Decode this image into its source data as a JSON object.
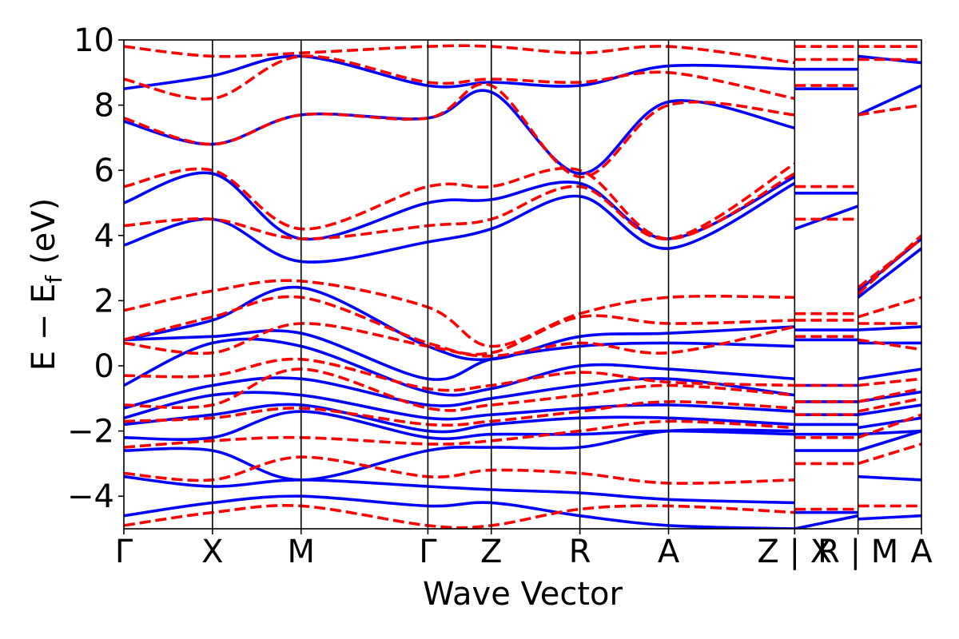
{
  "chart_data": {
    "type": "line",
    "title": "",
    "xlabel": "Wave Vector",
    "ylabel_main": "E − E",
    "ylabel_sub": "f",
    "ylabel_unit": "(eV)",
    "ylim": [
      -5,
      10
    ],
    "yticks": [
      -4,
      -2,
      0,
      2,
      4,
      6,
      8,
      10
    ],
    "ytick_labels": [
      "−4",
      "−2",
      "0",
      "2",
      "4",
      "6",
      "8",
      "10"
    ],
    "xlim": [
      0,
      12.25
    ],
    "kpoint_positions": [
      0,
      1.37,
      2.74,
      4.7,
      5.68,
      7.05,
      8.42,
      10.37,
      10.37,
      11.35,
      11.35,
      12.33
    ],
    "kpoint_labels": [
      {
        "x": 0,
        "text": "Γ"
      },
      {
        "x": 1.37,
        "text": "X"
      },
      {
        "x": 2.74,
        "text": "M"
      },
      {
        "x": 4.7,
        "text": "Γ"
      },
      {
        "x": 5.68,
        "text": "Z"
      },
      {
        "x": 7.05,
        "text": "R"
      },
      {
        "x": 8.42,
        "text": "A"
      },
      {
        "x": 10.37,
        "text": "Z | X"
      },
      {
        "x": 11.35,
        "text": "R | M"
      },
      {
        "x": 12.33,
        "text": "A"
      }
    ],
    "colors": {
      "series_a": "#0000ff",
      "series_b": "#ff0000"
    },
    "series": [
      {
        "name": "blue-solid",
        "style": "solid",
        "color": "#0000ff",
        "bands": [
          [
            -4.6,
            -4.2,
            -4.0,
            -4.3,
            -4.2,
            -4.6,
            -4.9,
            -5.0,
            -5.0,
            -4.6,
            -4.7,
            -4.6
          ],
          [
            -3.4,
            -3.7,
            -3.5,
            -3.7,
            -3.8,
            -3.9,
            -4.1,
            -4.2,
            -4.5,
            -4.5,
            -3.4,
            -3.5
          ],
          [
            -2.6,
            -2.6,
            -3.5,
            -2.6,
            -2.5,
            -2.5,
            -2.0,
            -2.0,
            -2.6,
            -2.6,
            -2.6,
            -2.0
          ],
          [
            -2.2,
            -2.2,
            -1.4,
            -2.2,
            -2.1,
            -2.1,
            -2.0,
            -2.1,
            -2.1,
            -2.1,
            -2.1,
            -2.0
          ],
          [
            -1.8,
            -1.5,
            -1.2,
            -2.0,
            -1.8,
            -1.6,
            -1.6,
            -1.8,
            -1.8,
            -1.8,
            -1.9,
            -1.6
          ],
          [
            -1.6,
            -0.9,
            -0.9,
            -1.6,
            -1.5,
            -1.3,
            -1.2,
            -1.4,
            -1.5,
            -1.5,
            -1.5,
            -1.2
          ],
          [
            -1.3,
            -0.6,
            -0.4,
            -1.2,
            -1.0,
            -0.6,
            -0.4,
            -0.9,
            -1.1,
            -1.1,
            -1.1,
            -0.8
          ],
          [
            -0.6,
            0.7,
            0.6,
            -0.8,
            -0.7,
            0.0,
            -0.1,
            -0.4,
            -0.6,
            -0.6,
            -0.4,
            -0.1
          ],
          [
            0.8,
            0.9,
            1.0,
            -0.4,
            0.2,
            0.6,
            0.7,
            0.6,
            0.8,
            0.8,
            0.7,
            0.7
          ],
          [
            0.8,
            1.4,
            2.4,
            0.6,
            0.2,
            0.9,
            1.0,
            1.2,
            1.1,
            1.1,
            1.1,
            1.2
          ],
          [
            3.7,
            4.5,
            3.2,
            3.8,
            4.2,
            5.2,
            3.6,
            5.6,
            4.2,
            4.9,
            2.1,
            3.6
          ],
          [
            5.0,
            5.9,
            3.9,
            5.0,
            5.1,
            5.6,
            3.9,
            5.8,
            5.3,
            5.3,
            2.3,
            3.9
          ],
          [
            7.5,
            6.8,
            7.7,
            7.6,
            8.4,
            5.9,
            8.1,
            7.3,
            8.5,
            8.5,
            7.7,
            8.6
          ],
          [
            8.5,
            8.9,
            9.5,
            8.6,
            8.7,
            8.6,
            9.2,
            9.1,
            9.1,
            9.1,
            9.5,
            9.3
          ]
        ]
      },
      {
        "name": "red-dashed",
        "style": "dashed",
        "color": "#ff0000",
        "bands": [
          [
            -4.9,
            -4.5,
            -4.3,
            -4.9,
            -4.9,
            -4.4,
            -4.3,
            -4.5,
            -4.4,
            -4.4,
            -4.3,
            -4.3
          ],
          [
            -3.3,
            -3.5,
            -2.8,
            -3.4,
            -3.2,
            -3.3,
            -3.6,
            -3.5,
            -3.0,
            -3.0,
            -3.0,
            -2.4
          ],
          [
            -2.5,
            -2.3,
            -2.2,
            -2.4,
            -2.3,
            -2.0,
            -1.7,
            -1.9,
            -2.2,
            -2.2,
            -2.2,
            -1.5
          ],
          [
            -1.7,
            -1.6,
            -1.3,
            -1.8,
            -1.7,
            -1.4,
            -1.1,
            -1.3,
            -1.5,
            -1.5,
            -1.4,
            -1.0
          ],
          [
            -1.2,
            -1.2,
            -0.1,
            -1.3,
            -1.2,
            -0.9,
            -0.6,
            -0.9,
            -1.1,
            -1.1,
            -1.1,
            -0.7
          ],
          [
            -0.3,
            -0.3,
            0.2,
            -0.7,
            -0.6,
            -0.2,
            -0.5,
            -0.6,
            -0.6,
            -0.6,
            -0.6,
            -0.4
          ],
          [
            0.7,
            0.4,
            1.3,
            0.6,
            0.3,
            0.7,
            0.4,
            1.2,
            0.9,
            0.9,
            0.8,
            0.5
          ],
          [
            0.8,
            1.5,
            2.1,
            0.7,
            0.4,
            1.5,
            1.3,
            1.4,
            1.4,
            1.4,
            1.3,
            1.3
          ],
          [
            1.7,
            2.3,
            2.6,
            1.8,
            0.6,
            1.6,
            2.1,
            2.1,
            1.6,
            1.6,
            1.5,
            2.1
          ],
          [
            4.3,
            4.5,
            3.9,
            4.3,
            4.5,
            5.5,
            3.9,
            6.2,
            4.5,
            4.5,
            2.4,
            3.9
          ],
          [
            5.5,
            6.0,
            4.2,
            5.5,
            5.5,
            6.0,
            3.9,
            5.9,
            5.5,
            5.5,
            2.2,
            4.0
          ],
          [
            7.6,
            6.8,
            7.7,
            7.6,
            8.6,
            5.8,
            8.0,
            7.7,
            8.6,
            8.6,
            7.7,
            8.0
          ],
          [
            8.8,
            8.2,
            9.5,
            8.7,
            8.8,
            8.7,
            9.0,
            8.2,
            9.4,
            9.4,
            9.4,
            9.4
          ],
          [
            9.8,
            9.5,
            9.6,
            9.8,
            9.8,
            9.6,
            9.8,
            9.3,
            9.8,
            9.8,
            9.8,
            9.8
          ]
        ]
      }
    ]
  }
}
